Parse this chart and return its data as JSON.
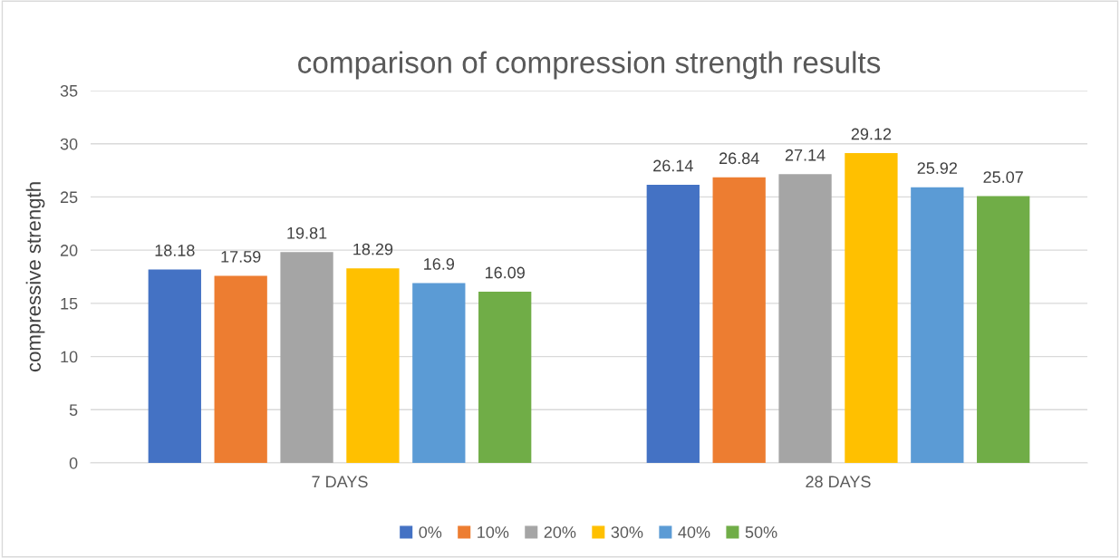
{
  "chart_data": {
    "type": "bar",
    "title": "comparison of compression strength results",
    "ylabel": "compressive strength",
    "categories": [
      "7 DAYS",
      "28 DAYS"
    ],
    "series": [
      {
        "name": "0%",
        "color": "#4472c4",
        "values": [
          18.18,
          26.14
        ]
      },
      {
        "name": "10%",
        "color": "#ed7d31",
        "values": [
          17.59,
          26.84
        ]
      },
      {
        "name": "20%",
        "color": "#a5a5a5",
        "values": [
          19.81,
          27.14
        ]
      },
      {
        "name": "30%",
        "color": "#ffc000",
        "values": [
          18.29,
          29.12
        ]
      },
      {
        "name": "40%",
        "color": "#5b9bd5",
        "values": [
          16.9,
          25.92
        ]
      },
      {
        "name": "50%",
        "color": "#70ad47",
        "values": [
          16.09,
          25.07
        ]
      }
    ],
    "ylim": [
      0,
      35
    ],
    "yticks": [
      0,
      5,
      10,
      15,
      20,
      25,
      30,
      35
    ],
    "grid": "y",
    "legend": "bottom",
    "data_labels": true
  }
}
